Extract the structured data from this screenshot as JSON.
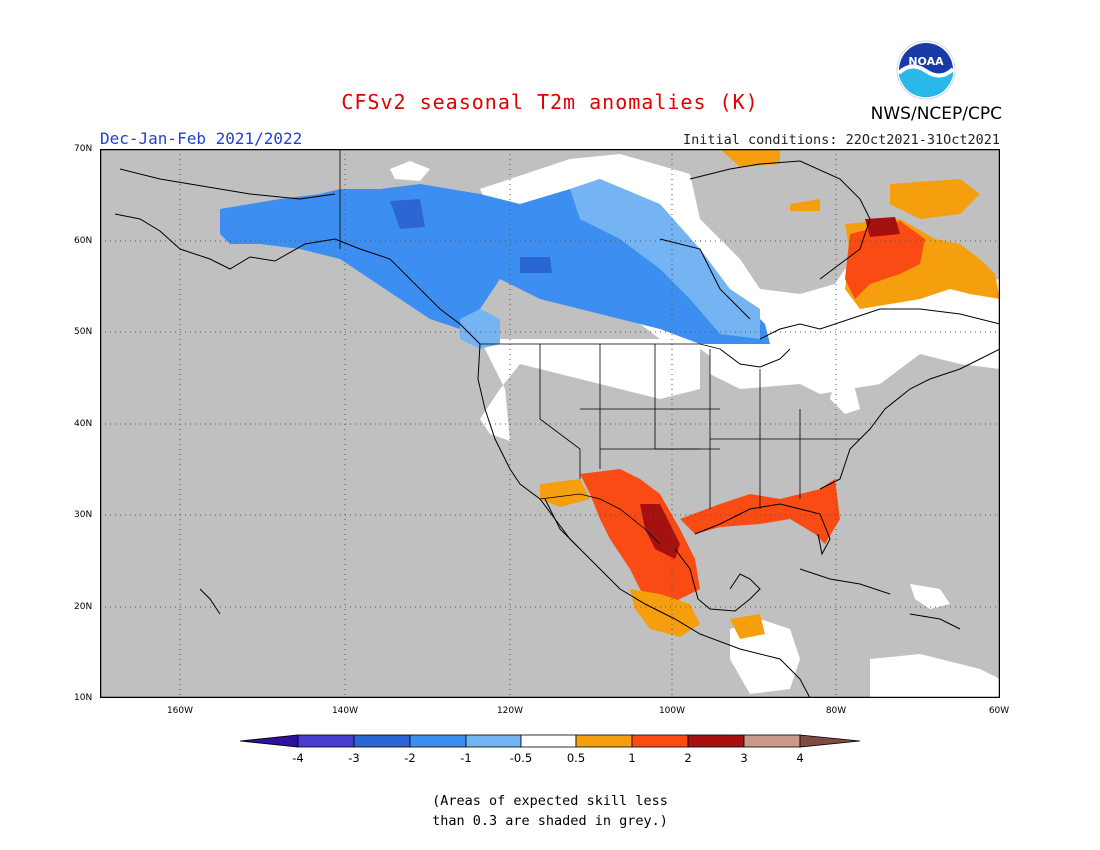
{
  "title": "CFSv2 seasonal T2m anomalies (K)",
  "season": "Dec-Jan-Feb 2021/2022",
  "initial_conditions": "Initial conditions: 22Oct2021-31Oct2021",
  "agency": "NWS/NCEP/CPC",
  "logo_text": "NOAA",
  "lat_labels": [
    "70N",
    "60N",
    "50N",
    "40N",
    "30N",
    "20N",
    "10N"
  ],
  "lon_labels": [
    "160W",
    "140W",
    "120W",
    "100W",
    "80W",
    "60W"
  ],
  "colorbar": {
    "labels": [
      "-4",
      "-3",
      "-2",
      "-1",
      "-0.5",
      "0.5",
      "1",
      "2",
      "3",
      "4"
    ],
    "colors": [
      "#2e0f9e",
      "#4a3ccf",
      "#2b66d4",
      "#3c8ff0",
      "#74b4f2",
      "#ffffff",
      "#f59e0e",
      "#fa4b14",
      "#a51111",
      "#c9998a",
      "#7f4c42"
    ]
  },
  "skill_note_line1": "(Areas of expected skill less",
  "skill_note_line2": "than 0.3 are shaded in grey.)",
  "colors": {
    "title": "#e00000",
    "season": "#1f3fd6",
    "grey_mask": "#c0c0c0"
  }
}
